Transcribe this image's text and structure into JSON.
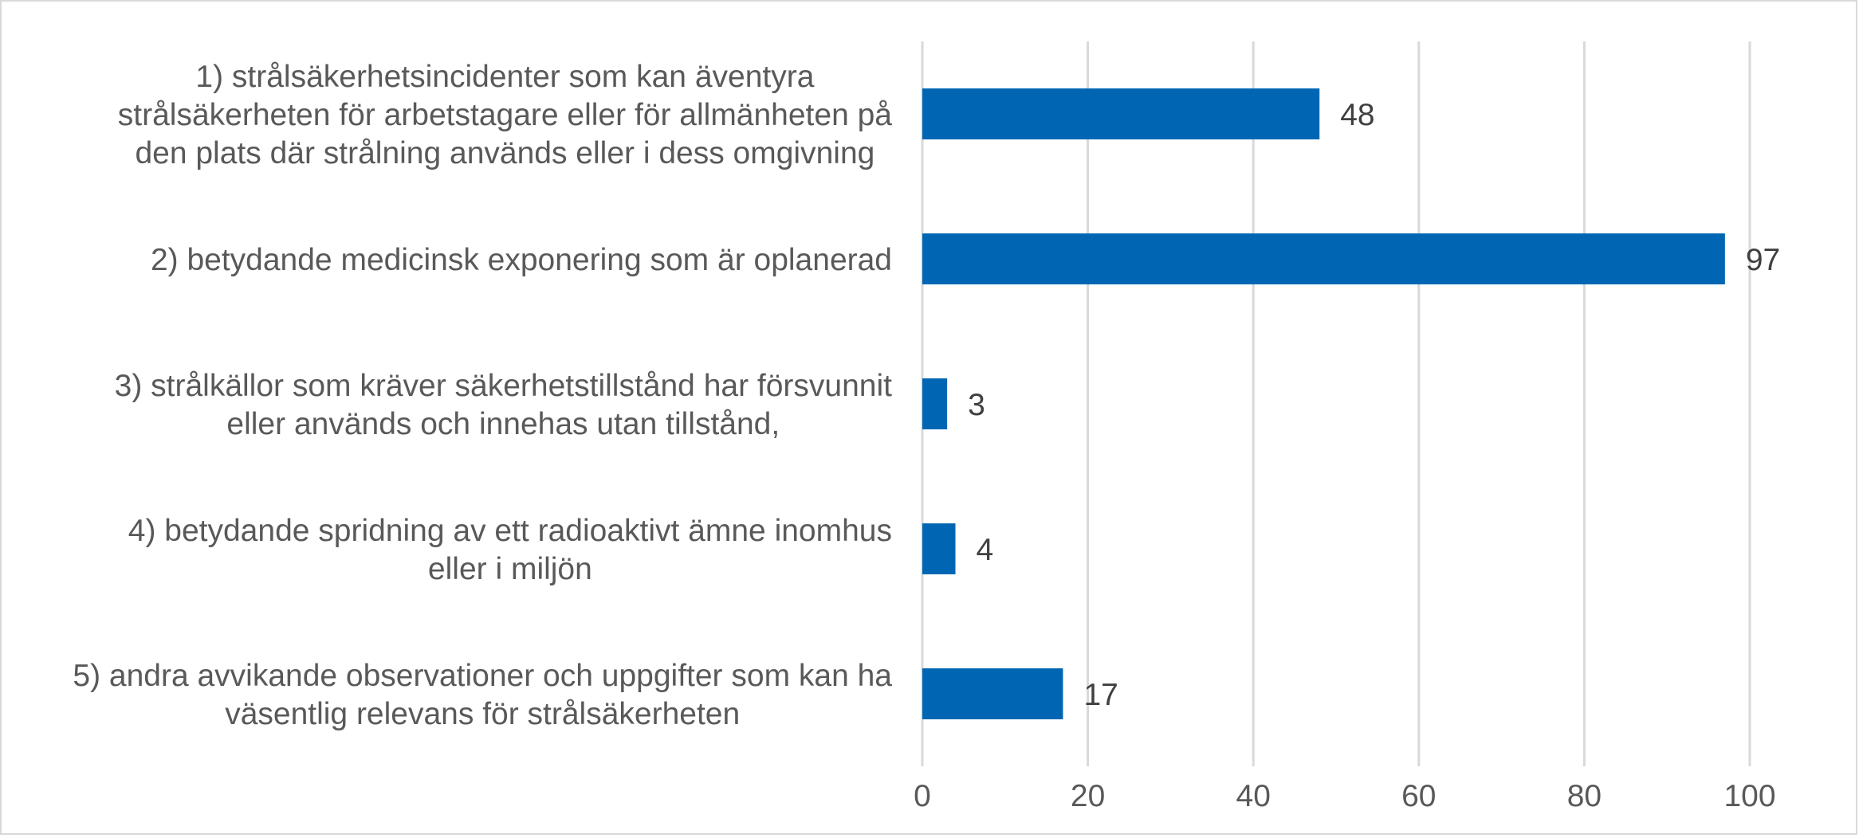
{
  "chart_data": {
    "type": "bar",
    "orientation": "horizontal",
    "categories": [
      [
        "1)  strålsäkerhetsincidenter som kan äventyra",
        "strålsäkerheten för arbetstagare eller för allmänheten på",
        "den plats där strålning används eller i dess omgivning"
      ],
      [
        "2) betydande medicinsk exponering som är oplanerad"
      ],
      [
        "3) strålkällor som kräver säkerhetstillstånd har försvunnit",
        "eller används och innehas utan tillstånd,"
      ],
      [
        "4) betydande spridning av ett radioaktivt ämne inomhus",
        "eller i miljön"
      ],
      [
        "5) andra avvikande observationer och uppgifter som kan ha",
        "väsentlig relevans för strålsäkerheten"
      ]
    ],
    "values": [
      48,
      97,
      3,
      4,
      17
    ],
    "value_labels": [
      "48",
      "97",
      "3",
      "4",
      "17"
    ],
    "xlim": [
      0,
      100
    ],
    "xticks": [
      0,
      20,
      40,
      60,
      80,
      100
    ],
    "xtick_labels": [
      "0",
      "20",
      "40",
      "60",
      "80",
      "100"
    ],
    "title": "",
    "xlabel": "",
    "ylabel": "",
    "grid": "vertical",
    "legend": "none",
    "bar_color": "#0066b3",
    "grid_color": "#d9d9d9",
    "text_color": "#595959"
  }
}
